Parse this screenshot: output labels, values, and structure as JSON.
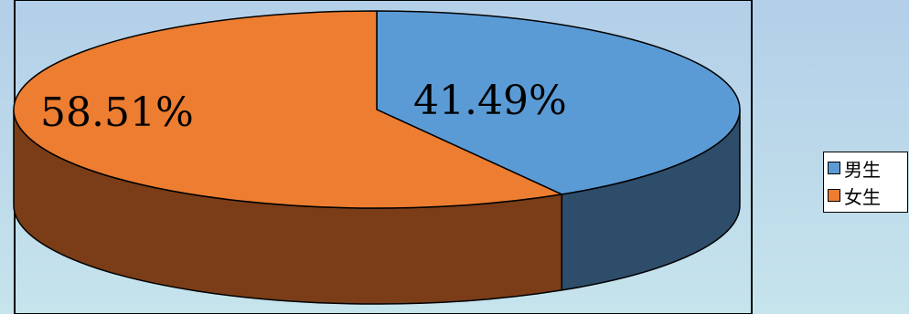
{
  "chart_data": {
    "type": "pie",
    "title": "",
    "categories": [
      "男生",
      "女生"
    ],
    "values": [
      41.49,
      58.51
    ],
    "data_labels": [
      "41.49%",
      "58.51%"
    ],
    "colors": {
      "男生": {
        "top": "#5b9bd5",
        "side": "#2e4d6b"
      },
      "女生": {
        "top": "#ed7d31",
        "side": "#7a3d18"
      }
    },
    "legend_position": "right",
    "style": "3d-exploded-cylinder"
  },
  "legend": {
    "items": [
      {
        "label": "男生",
        "color": "#5b9bd5"
      },
      {
        "label": "女生",
        "color": "#ed7d31"
      }
    ]
  }
}
